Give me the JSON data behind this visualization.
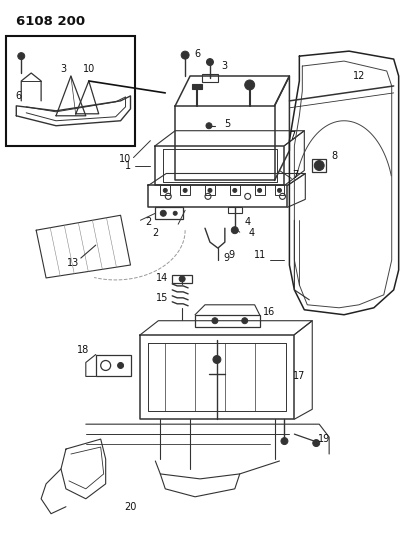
{
  "title": "6108 200",
  "bg_color": "#ffffff",
  "lc": "#333333",
  "lc_dark": "#111111",
  "title_fontsize": 9.5,
  "label_fontsize": 7.0,
  "figsize": [
    4.08,
    5.33
  ],
  "dpi": 100
}
